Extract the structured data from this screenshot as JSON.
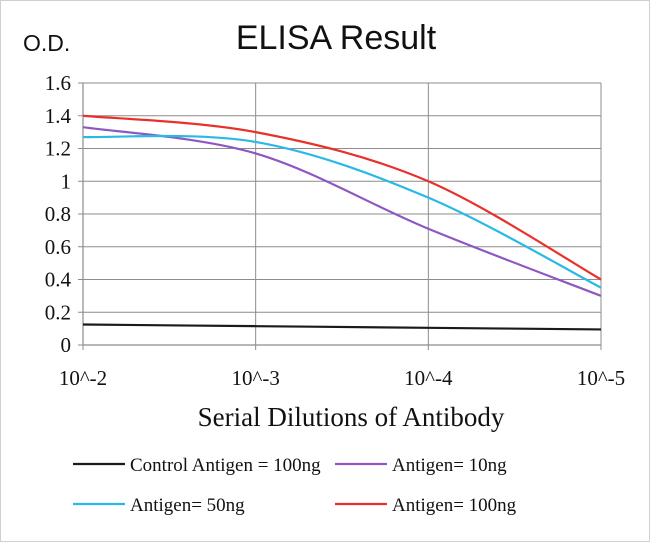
{
  "chart_data": {
    "type": "line",
    "title": "ELISA Result",
    "ylabel": "O.D.",
    "xlabel": "Serial  Dilutions  of Antibody",
    "x": [
      0,
      1,
      2,
      3
    ],
    "x_tick_labels": [
      "10^-2",
      "10^-3",
      "10^-4",
      "10^-5"
    ],
    "y_ticks": [
      0,
      0.2,
      0.4,
      0.6,
      0.8,
      1,
      1.2,
      1.4,
      1.6
    ],
    "y_tick_labels": [
      "0",
      "0.2",
      "0.4",
      "0.6",
      "0.8",
      "1",
      "1.2",
      "1.4",
      "1.6"
    ],
    "ylim": [
      0,
      1.6
    ],
    "grid": "vertical and horizontal",
    "legend_position": "bottom",
    "series": [
      {
        "name": "Control Antigen = 100ng",
        "color": "#1a1a1a",
        "values": [
          0.125,
          0.115,
          0.105,
          0.095
        ]
      },
      {
        "name": "Antigen= 10ng",
        "color": "#8e57c2",
        "values": [
          1.33,
          1.17,
          0.71,
          0.3
        ]
      },
      {
        "name": "Antigen= 50ng",
        "color": "#2ab9e6",
        "values": [
          1.27,
          1.24,
          0.9,
          0.35
        ]
      },
      {
        "name": "Antigen= 100ng",
        "color": "#e8312b",
        "values": [
          1.4,
          1.3,
          1.0,
          0.4
        ]
      }
    ]
  }
}
